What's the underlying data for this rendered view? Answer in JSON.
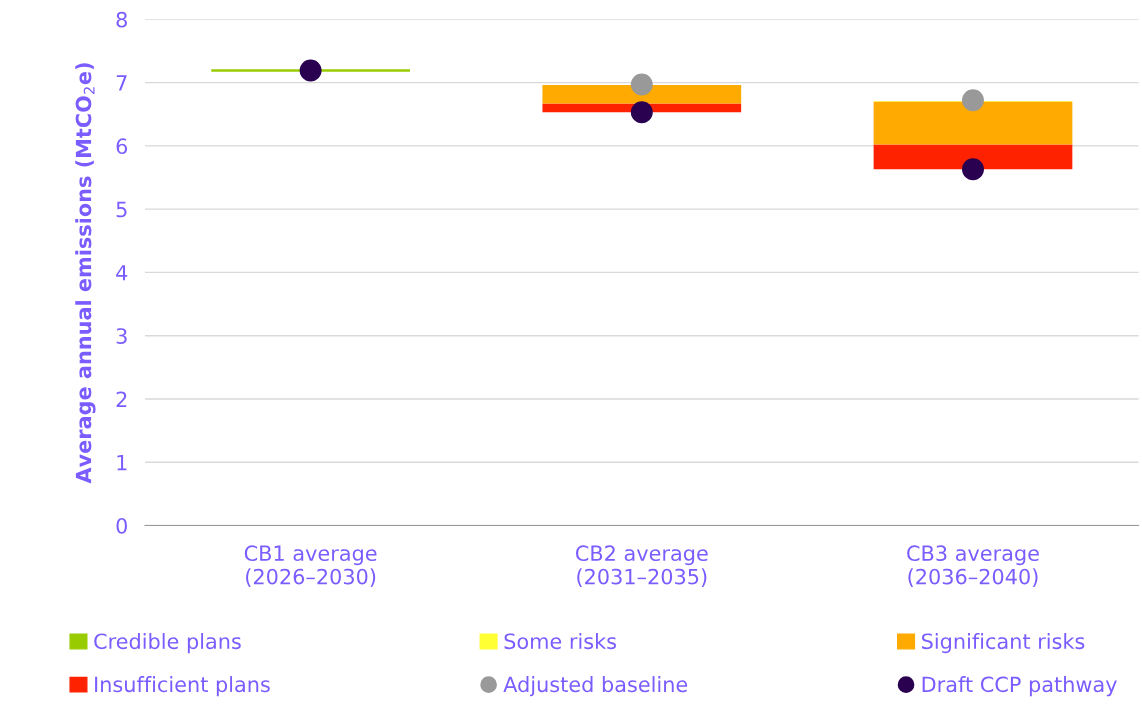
{
  "chart_data": {
    "type": "bar",
    "ylabel": "Average annual emissions (MtCO$_{2}$e)",
    "categories": [
      "CB1 average\n(2026–2030)",
      "CB2 average\n(2031–2035)",
      "CB3 average\n(2036–2040)"
    ],
    "series": [
      {
        "name": "Insufficient plans",
        "color": "#ff2200",
        "base": [
          null,
          6.53,
          5.63
        ],
        "values": [
          null,
          0.14,
          0.39
        ]
      },
      {
        "name": "Significant risks",
        "color": "#ffaa00",
        "base": [
          null,
          6.67,
          6.02
        ],
        "values": [
          null,
          0.29,
          0.68
        ]
      },
      {
        "name": "Some risks",
        "color": "#ffff33",
        "base": [
          null,
          null,
          6.7
        ],
        "values": [
          null,
          null,
          0.01
        ]
      },
      {
        "name": "Credible plans",
        "color": "#99cc00",
        "base": [
          7.17,
          null,
          null
        ],
        "values": [
          0.04,
          null,
          null
        ]
      },
      {
        "name": "Adjusted baseline",
        "type": "scatter",
        "color": "#999999",
        "values": [
          null,
          6.97,
          6.72
        ]
      },
      {
        "name": "Draft CCP pathway",
        "type": "scatter",
        "color": "#2a0050",
        "values": [
          7.19,
          6.53,
          5.63
        ]
      }
    ],
    "ylim": [
      0,
      8
    ],
    "yticks": [
      0,
      1,
      2,
      3,
      4,
      5,
      6,
      7,
      8
    ],
    "grid": "y",
    "legend": "bottom",
    "marker": "circle"
  }
}
